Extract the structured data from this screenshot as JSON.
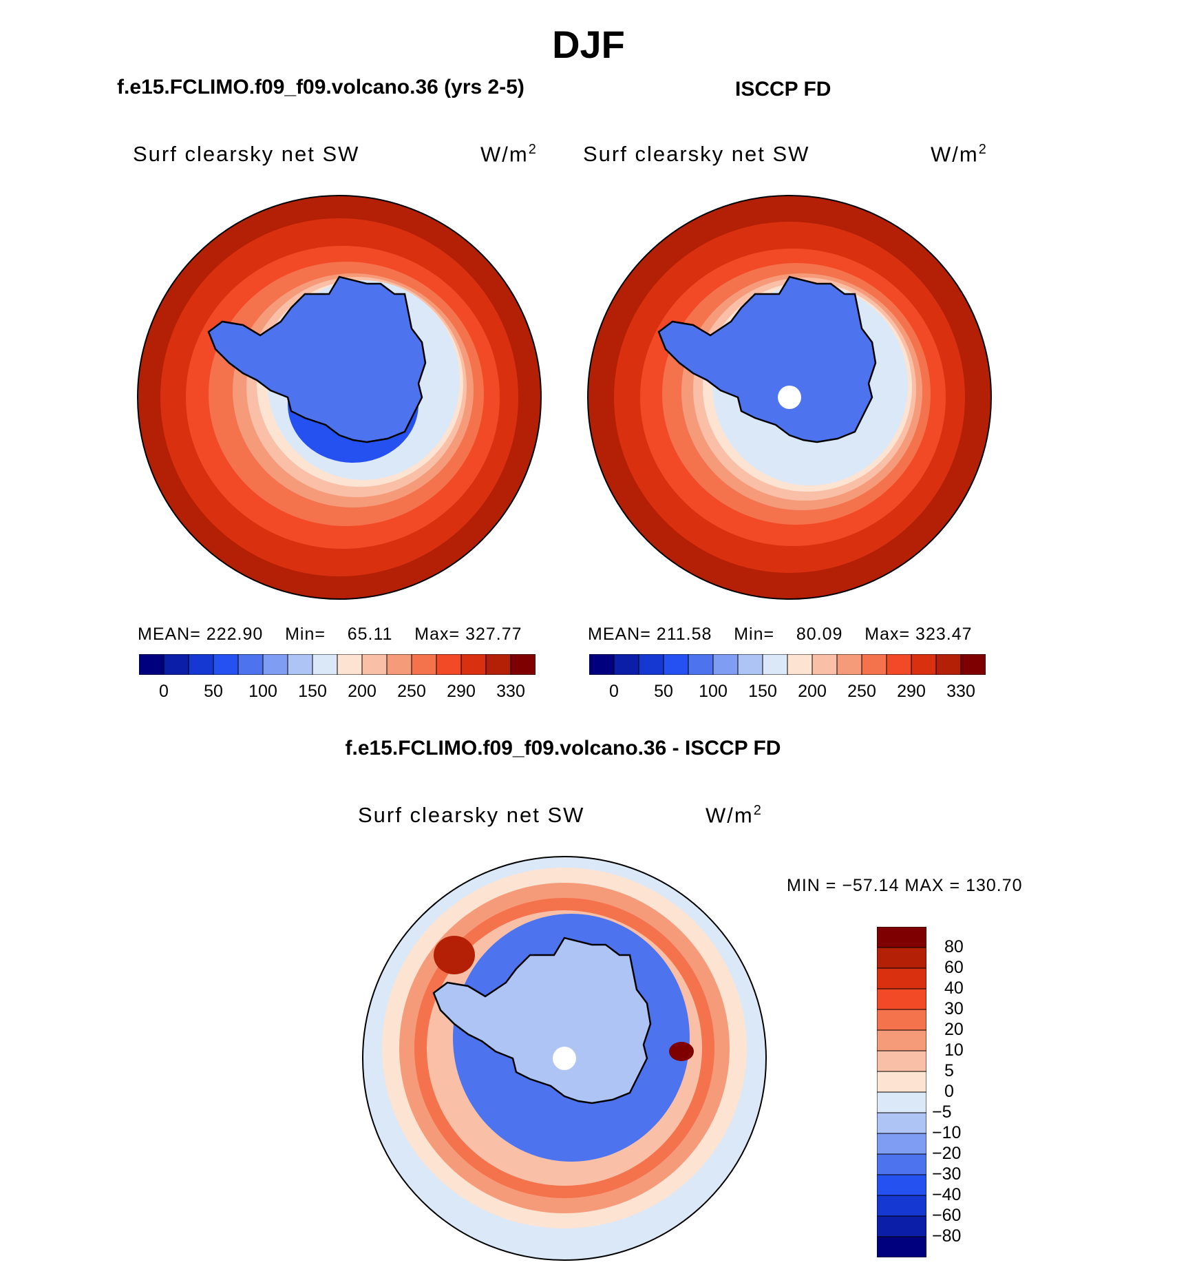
{
  "figure": {
    "title": "DJF",
    "left_panel_title": "f.e15.FCLIMO.f09_f09.volcano.36 (yrs 2-5)",
    "right_panel_title": "ISCCP FD",
    "diff_panel_title": "f.e15.FCLIMO.f09_f09.volcano.36 - ISCCP FD",
    "var_label": "Surf clearsky net SW",
    "units_base": "W/m",
    "units_exp": "2"
  },
  "chart_data": [
    {
      "type": "heatmap",
      "projection": "south-polar-stereographic",
      "title": "f.e15.FCLIMO.f09_f09.volcano.36 (yrs 2-5)",
      "variable": "Surf clearsky net SW",
      "units": "W/m2",
      "stats": {
        "mean_label": "MEAN=",
        "mean": "222.90",
        "min_label": "Min=",
        "min": "65.11",
        "max_label": "Max=",
        "max": "327.77"
      },
      "levels": [
        "0",
        "50",
        "100",
        "150",
        "200",
        "250",
        "290",
        "330"
      ],
      "colors": [
        "#00007f",
        "#0a1ea8",
        "#1538d2",
        "#2451f0",
        "#4d74ee",
        "#7f9df2",
        "#adc4f5",
        "#dbe8f8",
        "#fde3d2",
        "#f9c0a7",
        "#f69b7a",
        "#f4724c",
        "#f24a26",
        "#d93110",
        "#b32006",
        "#7f0000"
      ]
    },
    {
      "type": "heatmap",
      "projection": "south-polar-stereographic",
      "title": "ISCCP FD",
      "variable": "Surf clearsky net SW",
      "units": "W/m2",
      "stats": {
        "mean_label": "MEAN=",
        "mean": "211.58",
        "min_label": "Min=",
        "min": "80.09",
        "max_label": "Max=",
        "max": "323.47"
      },
      "levels": [
        "0",
        "50",
        "100",
        "150",
        "200",
        "250",
        "290",
        "330"
      ],
      "colors": [
        "#00007f",
        "#0a1ea8",
        "#1538d2",
        "#2451f0",
        "#4d74ee",
        "#7f9df2",
        "#adc4f5",
        "#dbe8f8",
        "#fde3d2",
        "#f9c0a7",
        "#f69b7a",
        "#f4724c",
        "#f24a26",
        "#d93110",
        "#b32006",
        "#7f0000"
      ]
    },
    {
      "type": "heatmap",
      "projection": "south-polar-stereographic",
      "title": "f.e15.FCLIMO.f09_f09.volcano.36 - ISCCP FD",
      "variable": "Surf clearsky net SW",
      "units": "W/m2",
      "stats": {
        "text": "MIN = −57.14 MAX = 130.70"
      },
      "levels": [
        "80",
        "60",
        "40",
        "30",
        "20",
        "10",
        "5",
        "0",
        "−5",
        "−10",
        "−20",
        "−30",
        "−40",
        "−60",
        "−80"
      ],
      "colors": [
        "#7f0000",
        "#b32006",
        "#d93110",
        "#f24a26",
        "#f4724c",
        "#f69b7a",
        "#f9c0a7",
        "#fde3d2",
        "#dbe8f8",
        "#adc4f5",
        "#7f9df2",
        "#4d74ee",
        "#2451f0",
        "#1538d2",
        "#0a1ea8",
        "#00007f"
      ]
    }
  ]
}
